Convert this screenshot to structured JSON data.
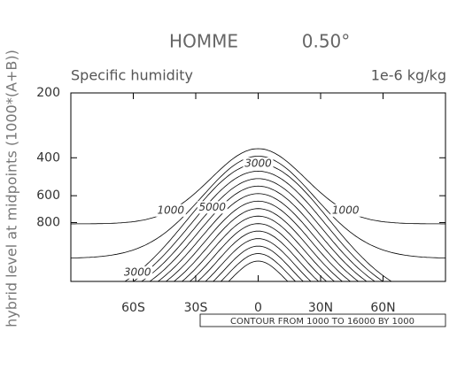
{
  "chart_data": {
    "type": "contour",
    "title": "HOMME",
    "subtitle": "0.50°",
    "left_string": "Specific humidity",
    "right_string": "1e-6 kg/kg",
    "y_label": "hybrid level at midpoints (1000*(A+B))",
    "info_label": "CONTOUR FROM 1000 TO 16000 BY 1000",
    "contour_levels": [
      1000,
      2000,
      3000,
      4000,
      5000,
      6000,
      7000,
      8000,
      9000,
      10000,
      11000,
      12000,
      13000,
      14000,
      15000,
      16000
    ],
    "line_color": "#000000",
    "xlim": [
      -90,
      90
    ],
    "xticks": [
      {
        "value": -60,
        "label": "60S"
      },
      {
        "value": -30,
        "label": "30S"
      },
      0,
      {
        "value": 30,
        "label": "30N"
      },
      {
        "value": 60,
        "label": "60N"
      }
    ],
    "ylim": [
      200,
      1500
    ],
    "yticks": [
      200,
      400,
      600,
      800
    ],
    "y_log": true,
    "y_inverted": true
  }
}
